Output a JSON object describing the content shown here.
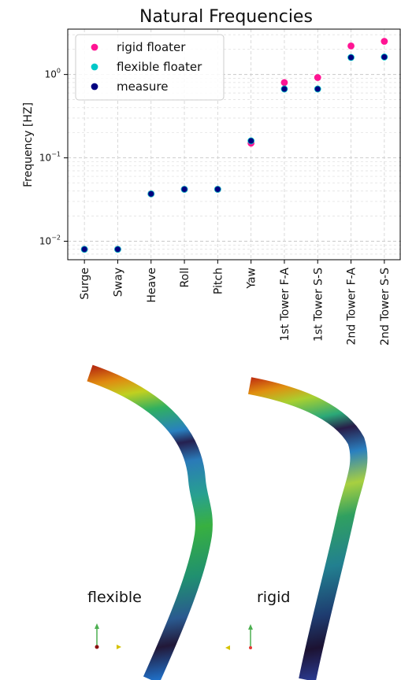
{
  "chart_data": {
    "type": "scatter",
    "title": "Natural Frequencies",
    "ylabel": "Frequency [HZ]",
    "xlabel": "",
    "yscale": "log",
    "ylim": [
      0.006,
      3.5
    ],
    "grid": true,
    "legend_position": "top-left",
    "categories": [
      "Surge",
      "Sway",
      "Heave",
      "Roll",
      "Pitch",
      "Yaw",
      "1st Tower F-A",
      "1st Tower S-S",
      "2nd Tower F-A",
      "2nd Tower S-S"
    ],
    "y_ticks": [
      {
        "value": 0.01,
        "base": "10",
        "exp": "−2"
      },
      {
        "value": 0.1,
        "base": "10",
        "exp": "−1"
      },
      {
        "value": 1,
        "base": "10",
        "exp": "0"
      }
    ],
    "series": [
      {
        "name": "rigid floater",
        "color": "#ff1493",
        "values": [
          0.008,
          0.008,
          0.037,
          0.042,
          0.042,
          0.15,
          0.8,
          0.92,
          2.2,
          2.5
        ]
      },
      {
        "name": "flexible floater",
        "color": "#00c8c8",
        "values": [
          0.008,
          0.008,
          0.037,
          0.042,
          0.042,
          0.16,
          0.67,
          0.67,
          1.6,
          1.62
        ]
      },
      {
        "name": "measure",
        "color": "#000080",
        "values": [
          0.008,
          0.008,
          0.037,
          0.042,
          0.042,
          0.16,
          0.67,
          0.67,
          1.6,
          1.62
        ]
      }
    ]
  },
  "render": {
    "label_flexible": "flexible",
    "label_rigid": "rigid"
  }
}
